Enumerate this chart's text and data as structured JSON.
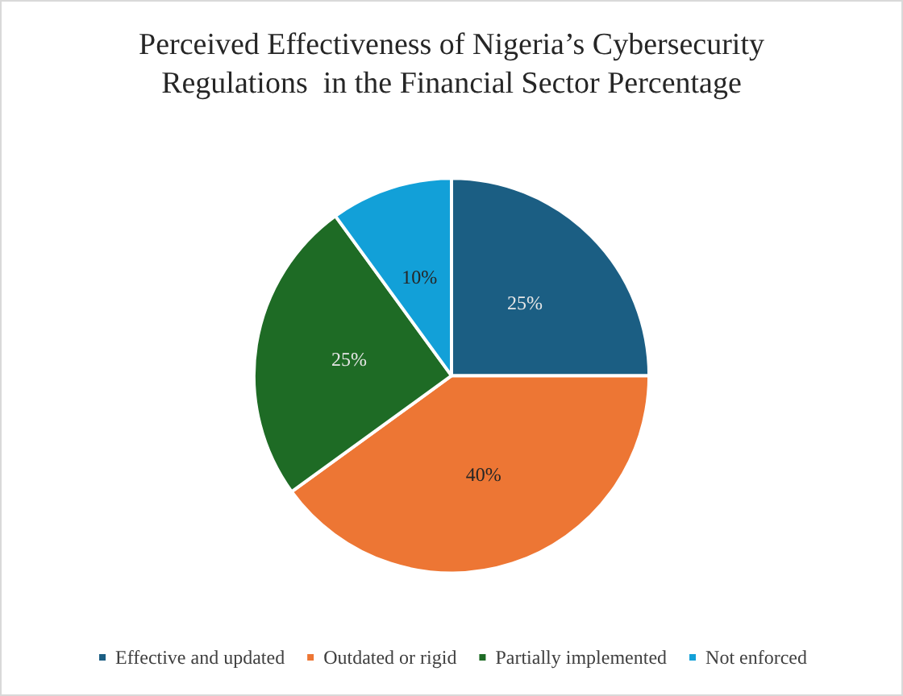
{
  "chart_data": {
    "type": "pie",
    "title": "Perceived Effectiveness of Nigeria’s Cybersecurity\nRegulations  in the Financial Sector Percentage",
    "categories": [
      "Effective and updated",
      "Outdated or rigid",
      "Partially implemented",
      "Not enforced"
    ],
    "values": [
      25,
      40,
      25,
      10
    ],
    "colors": [
      "#1b5e83",
      "#ed7634",
      "#1e6b25",
      "#12a0d8"
    ],
    "value_labels": [
      "25%",
      "40%",
      "25%",
      "10%"
    ],
    "legend": "bottom"
  }
}
